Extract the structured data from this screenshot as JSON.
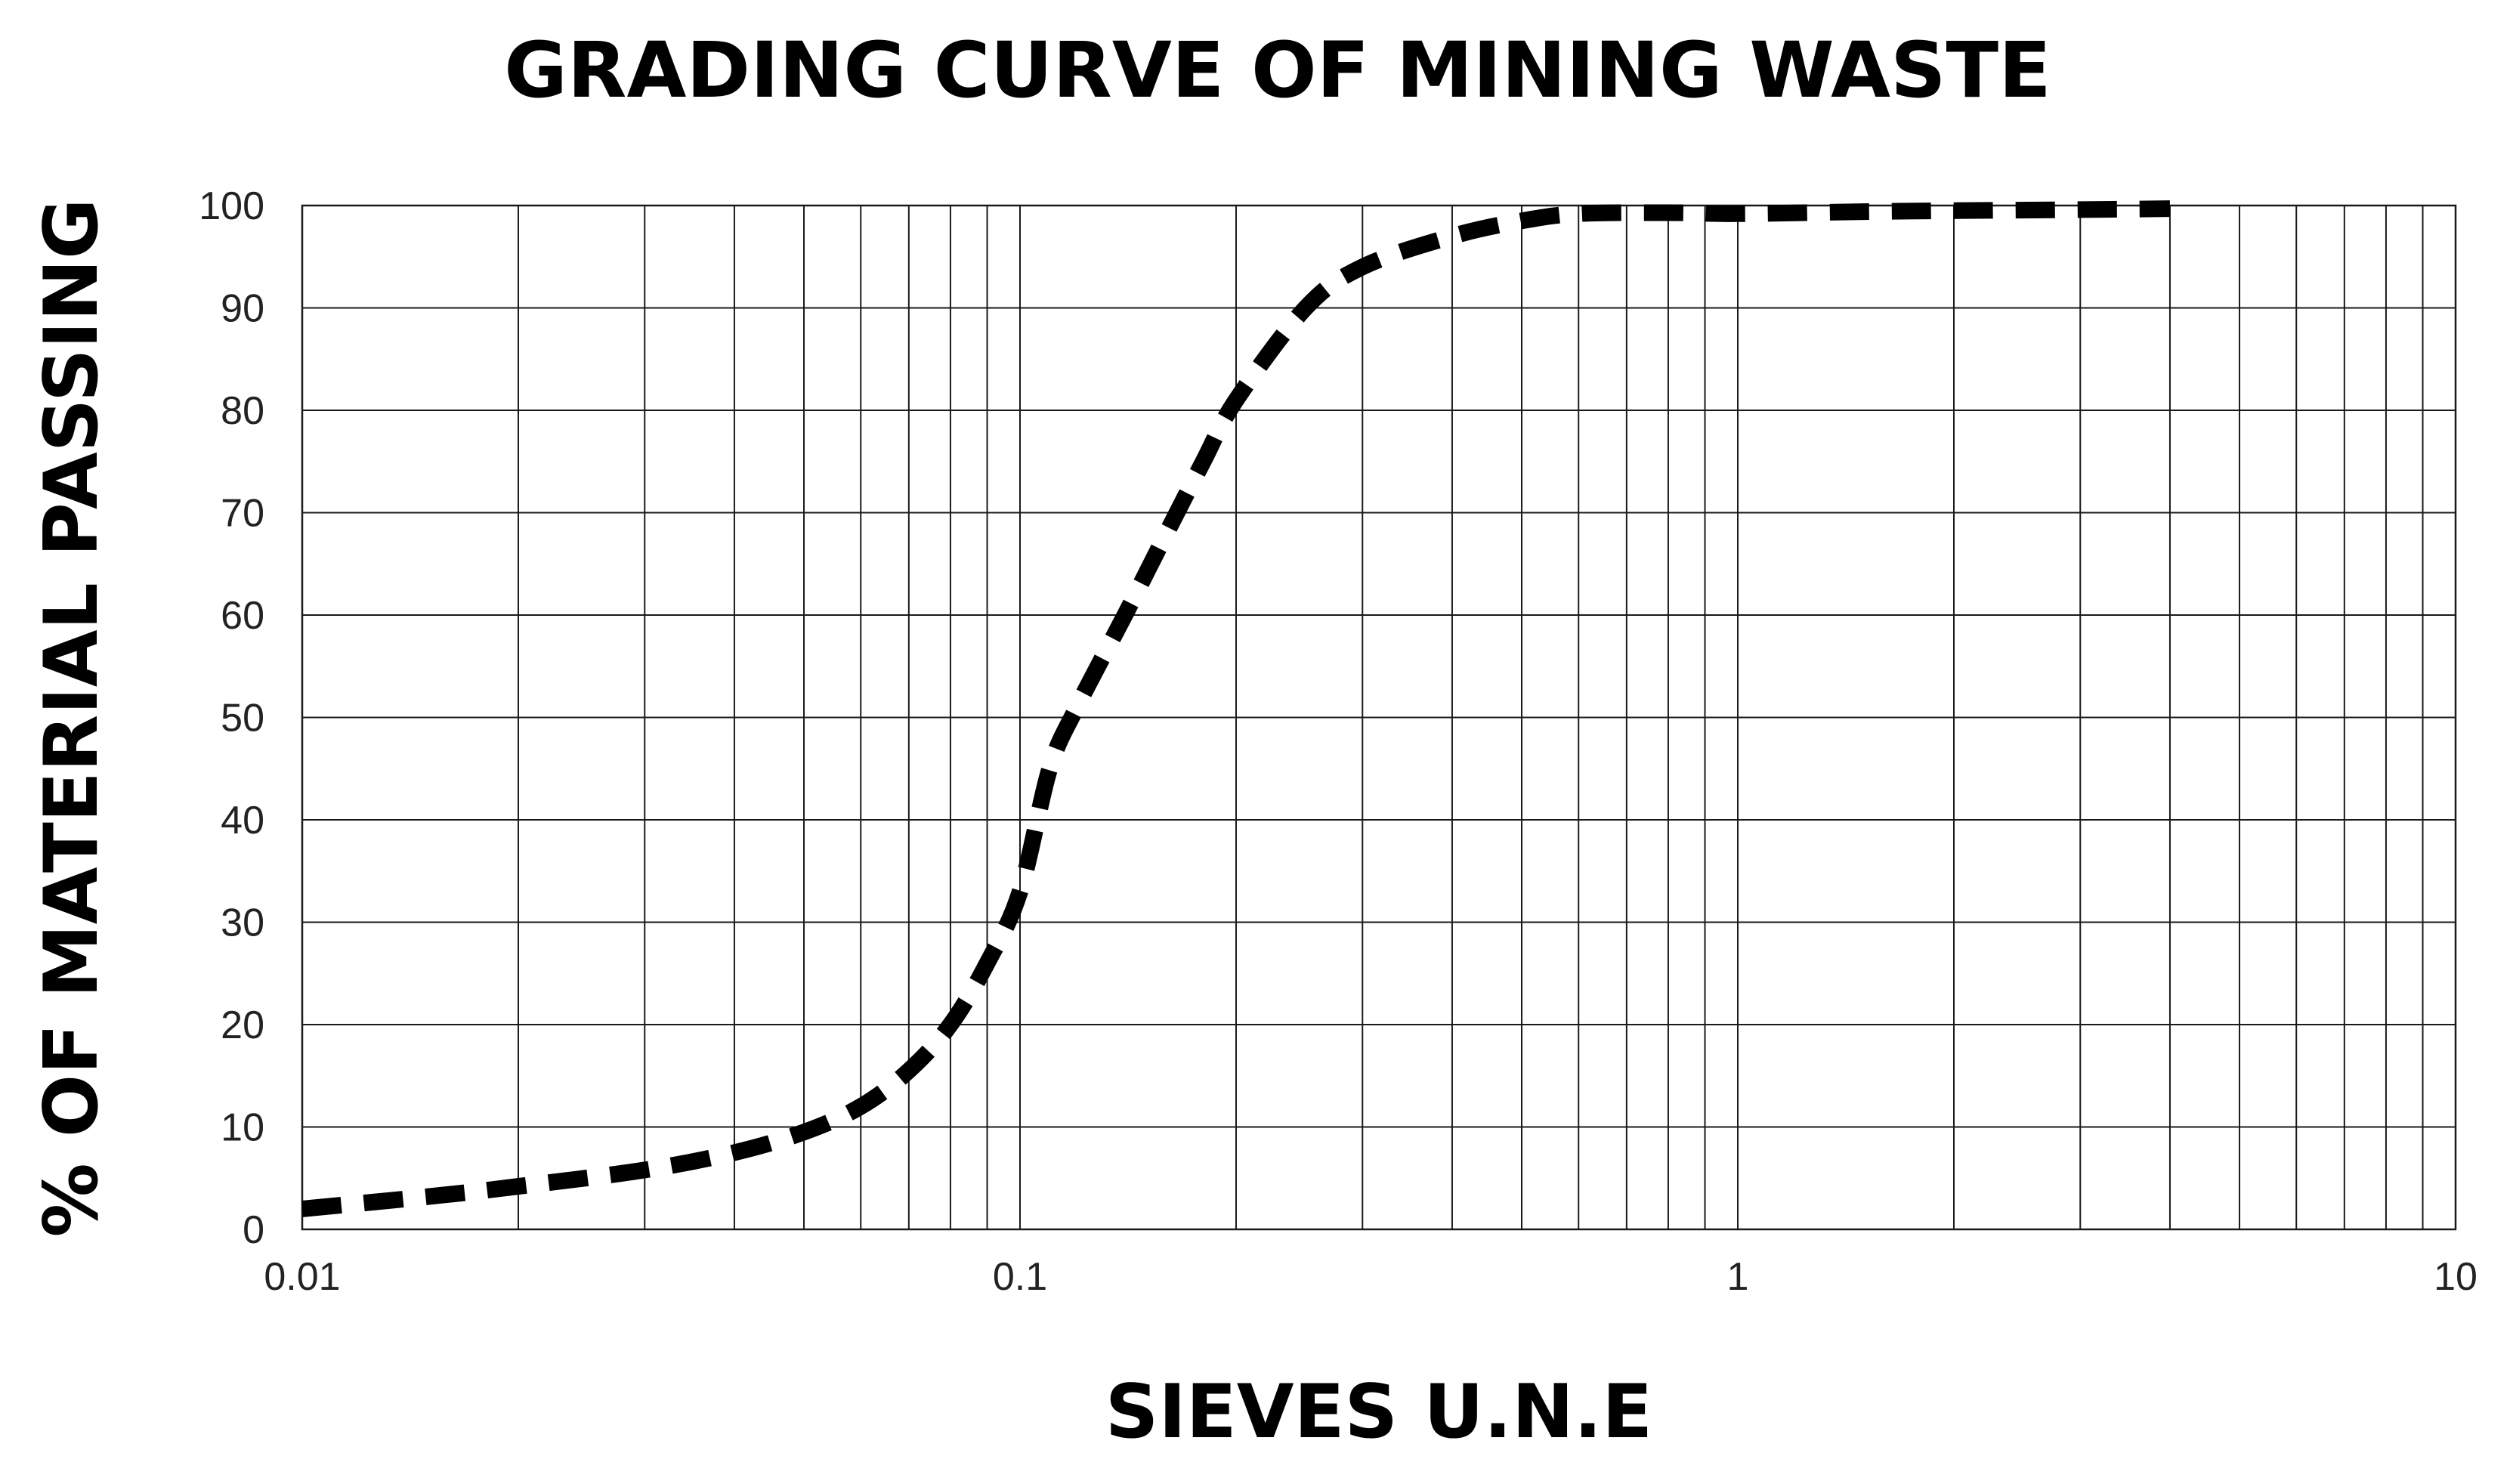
{
  "chart_data": {
    "type": "line",
    "title": "GRADING CURVE OF MINING WASTE",
    "xlabel": "SIEVES U.N.E",
    "ylabel": "% OF MATERIAL PASSING",
    "x_scale": "log",
    "xlim": [
      0.01,
      10
    ],
    "ylim": [
      0,
      100
    ],
    "x_ticks": [
      "0.01",
      "0.1",
      "1",
      "10"
    ],
    "y_ticks": [
      "0",
      "10",
      "20",
      "30",
      "40",
      "50",
      "60",
      "70",
      "80",
      "90",
      "100"
    ],
    "grid": true,
    "legend": "none",
    "line_style": "dashed",
    "line_color": "#000000",
    "series": [
      {
        "x": [
          0.01,
          0.015,
          0.02,
          0.03,
          0.04,
          0.05,
          0.06,
          0.07,
          0.08,
          0.09,
          0.1,
          0.11,
          0.12,
          0.14,
          0.16,
          0.18,
          0.2,
          0.25,
          0.3,
          0.4,
          0.5,
          0.6,
          0.8,
          1,
          1.5,
          2,
          3,
          4
        ],
        "y": [
          2,
          3.2,
          4.2,
          5.8,
          7.5,
          9.5,
          12,
          15.5,
          20,
          26,
          33,
          45,
          51,
          60,
          68,
          75,
          81,
          90,
          94,
          97,
          98.5,
          99.2,
          99.3,
          99.2,
          99.4,
          99.5,
          99.6,
          99.7
        ]
      }
    ]
  }
}
